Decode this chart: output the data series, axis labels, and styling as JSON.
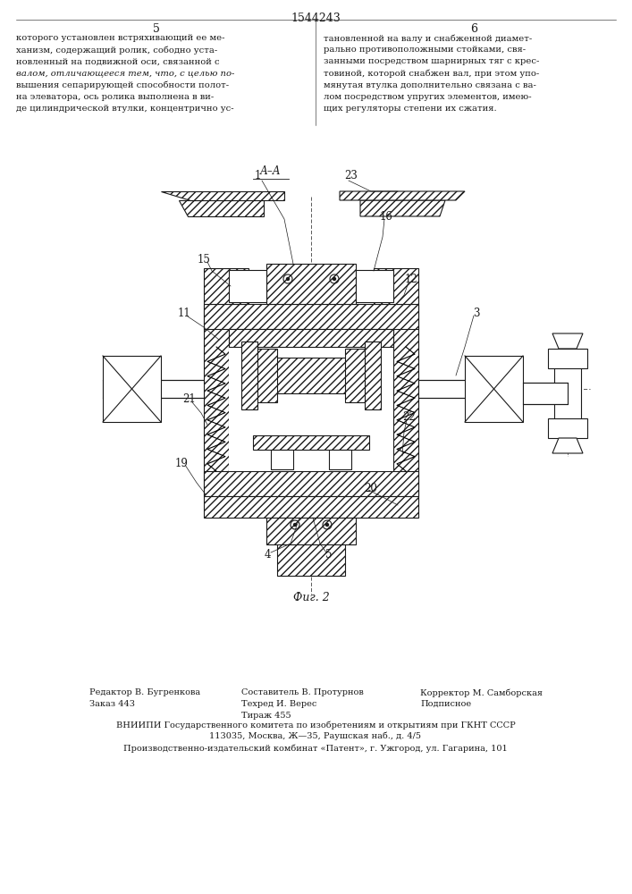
{
  "page_number_center": "1544243",
  "page_col_left": "5",
  "page_col_right": "6",
  "fig_caption": "Фиг. 2",
  "bg_color": "#ffffff",
  "line_color": "#1a1a1a",
  "text_left_lines": [
    "которого установлен встряхивающий ее ме-",
    "ханизм, содержащий ролик, сободно уста-",
    "новленный на подвижной оси, связанной с",
    "валом, отличающееся тем, что, с целью по-",
    "вышения сепарирующей способности полот-",
    "на элеватора, ось ролика выполнена в ви-",
    "де цилиндрической втулки, концентрично ус-"
  ],
  "text_right_lines": [
    "тановленной на валу и снабженной диамет-",
    "рально противоположными стойками, свя-",
    "занными посредством шарнирных тяг с крес-",
    "товиной, которой снабжен вал, при этом упо-",
    "мянутая втулка дополнительно связана с ва-",
    "лом посредством упругих элементов, имею-",
    "щих регуляторы степени их сжатия."
  ],
  "footer_col1_lines": [
    [
      "Редактор В. Бугренкова",
      130
    ],
    [
      "Заказ 443",
      130
    ]
  ],
  "footer_col2_lines": [
    [
      "Составитель В. Протурнов",
      353
    ],
    [
      "Техред И. Верес",
      353
    ],
    [
      "Тираж 455",
      353
    ]
  ],
  "footer_col3_lines": [
    [
      "Корректор М. Самборская",
      560
    ],
    [
      "Подписное",
      560
    ]
  ],
  "footer_bottom_lines": [
    "ВНИИПИ Государственного комитета по изобретениям и открытиям при ГКНТ СССР",
    "113035, Москва, Ж—35, Раушская наб., д. 4/5",
    "Производственно-издательский комбинат «Патент», г. Ужгород, ул. Гагарина, 101"
  ]
}
